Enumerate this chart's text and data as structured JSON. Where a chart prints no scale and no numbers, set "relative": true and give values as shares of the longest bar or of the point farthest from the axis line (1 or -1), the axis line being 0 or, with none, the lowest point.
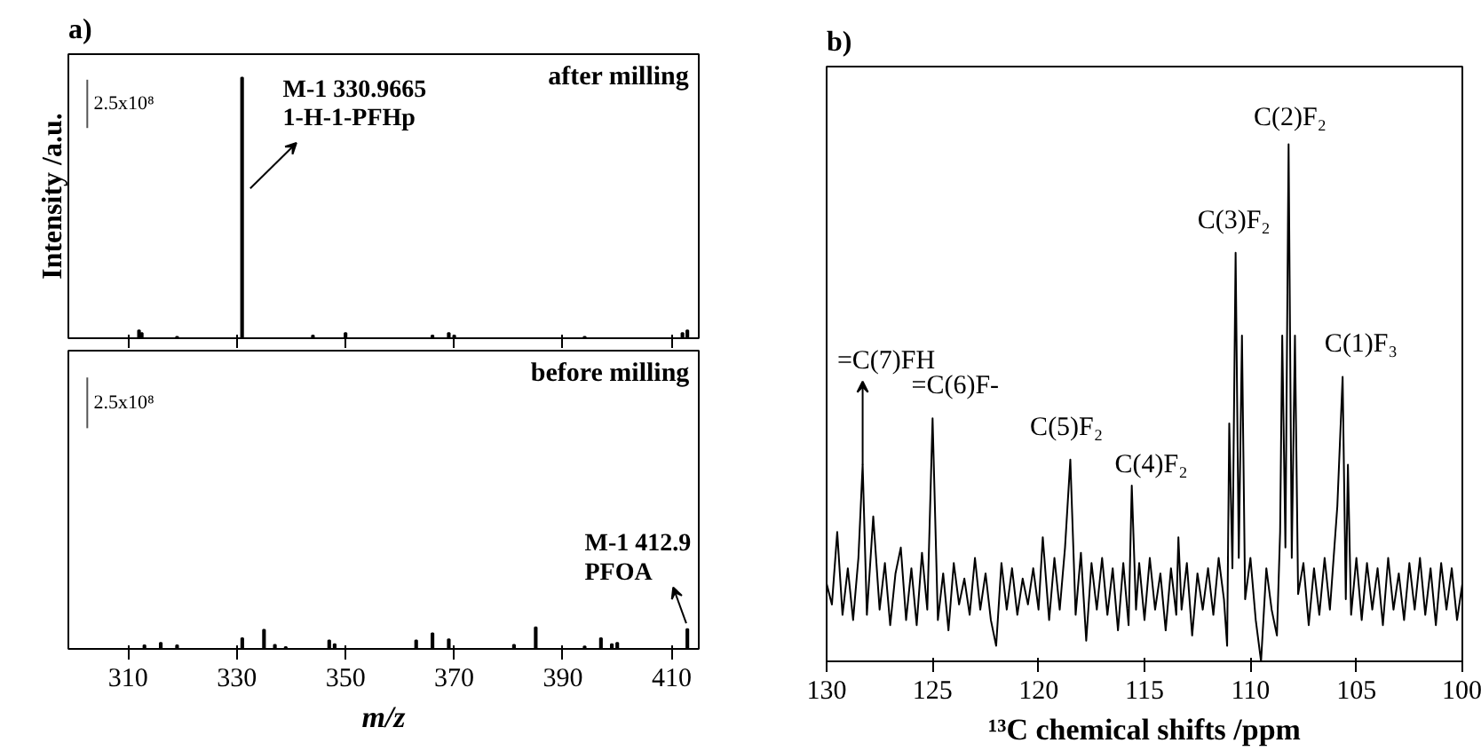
{
  "chart_data": [
    {
      "type": "bar",
      "title": "a)",
      "ylabel": "Intensity /a.u.",
      "relative": true,
      "xlim": [
        299,
        415
      ],
      "xticks": [
        310,
        330,
        350,
        370,
        390,
        410
      ],
      "tick_labels": false,
      "x": [
        312,
        312.5,
        319,
        330.9665,
        344,
        350,
        366,
        369,
        370,
        394,
        412,
        412.9
      ],
      "series": [
        {
          "name": "after milling",
          "color": "#000000",
          "values": [
            0.03,
            0.02,
            0.005,
            1,
            0.01,
            0.02,
            0.01,
            0.02,
            0.01,
            0.005,
            0.02,
            0.03
          ]
        }
      ],
      "annotations": [
        "2.5x10⁸",
        {
          "text": "M-1 330.9665\n1-H-1-PFHp",
          "x": 330.9665,
          "y": 1
        }
      ]
    },
    {
      "type": "bar",
      "xlabel": "m/z",
      "relative": true,
      "xlim": [
        299,
        415
      ],
      "xticks": [
        310,
        330,
        350,
        370,
        390,
        410
      ],
      "tick_labels": "x",
      "x": [
        313,
        316,
        319,
        331,
        335,
        337,
        339,
        347,
        348,
        363,
        366,
        369,
        381,
        385,
        394,
        397,
        399,
        400,
        412.9
      ],
      "series": [
        {
          "name": "before milling",
          "color": "#000000",
          "values": [
            0.17,
            0.28,
            0.17,
            0.5,
            0.89,
            0.19,
            0.08,
            0.39,
            0.22,
            0.39,
            0.72,
            0.44,
            0.19,
            1,
            0.11,
            0.5,
            0.22,
            0.28,
            0.92
          ]
        }
      ],
      "annotations": [
        "2.5x10⁸",
        {
          "text": "M-1 412.9\nPFOA",
          "x": 412.9,
          "y": 0.92
        }
      ]
    },
    {
      "type": "line",
      "title": "b)",
      "xlabel": "¹³C chemical shifts /ppm",
      "relative": true,
      "xlim": [
        130,
        100
      ],
      "xticks": [
        130,
        125,
        120,
        115,
        110,
        105,
        100
      ],
      "tick_labels": "x",
      "x": [
        130,
        129.75,
        129.5,
        129.25,
        129,
        128.75,
        128.5,
        128.3,
        128.1,
        127.8,
        127.5,
        127.25,
        127,
        126.75,
        126.5,
        126.25,
        126,
        125.75,
        125.5,
        125.25,
        125,
        124.75,
        124.5,
        124.25,
        124,
        123.75,
        123.5,
        123.25,
        123,
        122.75,
        122.5,
        122.25,
        122,
        121.75,
        121.5,
        121.25,
        121,
        120.75,
        120.5,
        120.25,
        120,
        119.8,
        119.5,
        119.25,
        119,
        118.75,
        118.5,
        118.25,
        118,
        117.75,
        117.5,
        117.25,
        117,
        116.75,
        116.5,
        116.25,
        116,
        115.75,
        115.6,
        115.4,
        115.25,
        115,
        114.75,
        114.5,
        114.25,
        114,
        113.75,
        113.5,
        113.4,
        113.25,
        113,
        112.75,
        112.5,
        112.25,
        112,
        111.75,
        111.5,
        111.25,
        111.1,
        111,
        110.85,
        110.7,
        110.55,
        110.4,
        110.25,
        110,
        109.75,
        109.5,
        109.25,
        109,
        108.75,
        108.6,
        108.5,
        108.35,
        108.2,
        108.05,
        107.9,
        107.75,
        107.5,
        107.25,
        107,
        106.75,
        106.5,
        106.25,
        105.9,
        105.65,
        105.5,
        105.4,
        105.25,
        105,
        104.75,
        104.5,
        104.25,
        104,
        103.75,
        103.5,
        103.25,
        103,
        102.75,
        102.5,
        102.25,
        102,
        101.75,
        101.5,
        101.25,
        101,
        100.75,
        100.5,
        100.25,
        100
      ],
      "series": [
        {
          "color": "#000000",
          "values": [
            0.15,
            0.11,
            0.25,
            0.09,
            0.18,
            0.08,
            0.2,
            0.38,
            0.09,
            0.28,
            0.1,
            0.19,
            0.07,
            0.17,
            0.22,
            0.08,
            0.18,
            0.07,
            0.21,
            0.1,
            0.47,
            0.08,
            0.17,
            0.06,
            0.19,
            0.11,
            0.16,
            0.09,
            0.2,
            0.1,
            0.17,
            0.08,
            0.03,
            0.19,
            0.1,
            0.18,
            0.09,
            0.16,
            0.11,
            0.18,
            0.1,
            0.24,
            0.08,
            0.2,
            0.1,
            0.22,
            0.39,
            0.09,
            0.21,
            0.04,
            0.19,
            0.1,
            0.2,
            0.09,
            0.18,
            0.06,
            0.19,
            0.07,
            0.34,
            0.1,
            0.19,
            0.08,
            0.2,
            0.1,
            0.17,
            0.06,
            0.18,
            0.09,
            0.24,
            0.1,
            0.19,
            0.05,
            0.17,
            0.1,
            0.18,
            0.09,
            0.2,
            0.12,
            0.03,
            0.46,
            0.18,
            0.79,
            0.2,
            0.63,
            0.12,
            0.2,
            0.08,
            0.0,
            0.18,
            0.1,
            0.05,
            0.25,
            0.63,
            0.22,
            1.0,
            0.2,
            0.63,
            0.13,
            0.19,
            0.07,
            0.18,
            0.09,
            0.2,
            0.1,
            0.3,
            0.55,
            0.12,
            0.38,
            0.09,
            0.2,
            0.08,
            0.19,
            0.1,
            0.18,
            0.07,
            0.2,
            0.1,
            0.17,
            0.08,
            0.19,
            0.1,
            0.2,
            0.09,
            0.18,
            0.07,
            0.19,
            0.1,
            0.18,
            0.08,
            0.15
          ]
        }
      ],
      "annotations": [
        {
          "text": "=C(7)FH",
          "x": 128.3,
          "y": 0.38
        },
        {
          "text": "=C(6)F-",
          "x": 125,
          "y": 0.47
        },
        {
          "text": "C(5)F₂",
          "x": 118.5,
          "y": 0.39
        },
        {
          "text": "C(4)F₂",
          "x": 115.6,
          "y": 0.34
        },
        {
          "text": "C(3)F₂",
          "x": 110.7,
          "y": 0.79
        },
        {
          "text": "C(2)F₂",
          "x": 108.2,
          "y": 1.0
        },
        {
          "text": "C(1)F₃",
          "x": 105.65,
          "y": 0.55
        }
      ]
    }
  ]
}
